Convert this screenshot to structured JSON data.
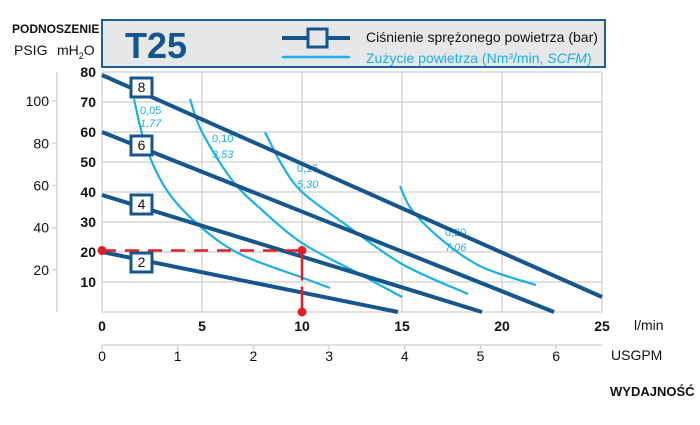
{
  "chart_data": {
    "type": "line",
    "title": "T25",
    "ylabel_heading": "PODNOSZENIE",
    "ylabel_psig": "PSIG",
    "ylabel_mh2o": {
      "main": "mH",
      "sub": "2",
      "tail": "O"
    },
    "xlabel": "WYDAJNOŚĆ",
    "x_unit": "l/min",
    "x2_unit": "USGPM",
    "xlim": [
      0,
      25
    ],
    "ylim": [
      0,
      80
    ],
    "x_ticks": [
      "0",
      "5",
      "10",
      "15",
      "20",
      "25"
    ],
    "x2_ticks": [
      "0",
      "1",
      "2",
      "3",
      "4",
      "5",
      "6"
    ],
    "y_ticks": [
      "10",
      "20",
      "30",
      "40",
      "50",
      "60",
      "70",
      "80"
    ],
    "psig_ticks": [
      "100",
      "80",
      "60",
      "40",
      "20"
    ],
    "grid": true,
    "legend": {
      "placement": "top",
      "pressure": "Ciśnienie sprężonego powietrza (bar)",
      "air_prefix": "Zużycie powietrza (Nm³/min, ",
      "air_italic": "SCFM",
      "air_suffix": ")"
    },
    "pressure_series": [
      {
        "name": "8",
        "points": [
          [
            0,
            79
          ],
          [
            25,
            5
          ]
        ]
      },
      {
        "name": "6",
        "points": [
          [
            0,
            60
          ],
          [
            22.6,
            0
          ]
        ]
      },
      {
        "name": "4",
        "points": [
          [
            0,
            39
          ],
          [
            19,
            0
          ]
        ]
      },
      {
        "name": "2",
        "points": [
          [
            0,
            20
          ],
          [
            14.8,
            0
          ]
        ]
      }
    ],
    "air_series": [
      {
        "nm3": "0,05",
        "scfm": "1,77",
        "points": [
          [
            1.6,
            71
          ],
          [
            2.2,
            55
          ],
          [
            3.3,
            40
          ],
          [
            5,
            28
          ],
          [
            7,
            19
          ],
          [
            10,
            11.5
          ],
          [
            11.4,
            8
          ]
        ]
      },
      {
        "nm3": "0,10",
        "scfm": "3,53",
        "points": [
          [
            4.4,
            71
          ],
          [
            5,
            60
          ],
          [
            6.5,
            44
          ],
          [
            8,
            34
          ],
          [
            10,
            23
          ],
          [
            12.5,
            14
          ],
          [
            15,
            5
          ]
        ]
      },
      {
        "nm3": "0,15",
        "scfm": "5,30",
        "points": [
          [
            8.15,
            60
          ],
          [
            9,
            49
          ],
          [
            10,
            40
          ],
          [
            12,
            30
          ],
          [
            15,
            16
          ],
          [
            18.3,
            6
          ]
        ]
      },
      {
        "nm3": "0,20",
        "scfm": "7,06",
        "points": [
          [
            14.9,
            42
          ],
          [
            15.5,
            34
          ],
          [
            17,
            24
          ],
          [
            19,
            15
          ],
          [
            21.7,
            9
          ]
        ]
      }
    ],
    "operating_point": {
      "flow": 10,
      "head": 20.5
    }
  },
  "colors": {
    "dark": "#15568e",
    "light": "#1ab0e8",
    "red": "#e21f26",
    "grid": "#d6d6d6",
    "box": "#e6e7e8"
  }
}
